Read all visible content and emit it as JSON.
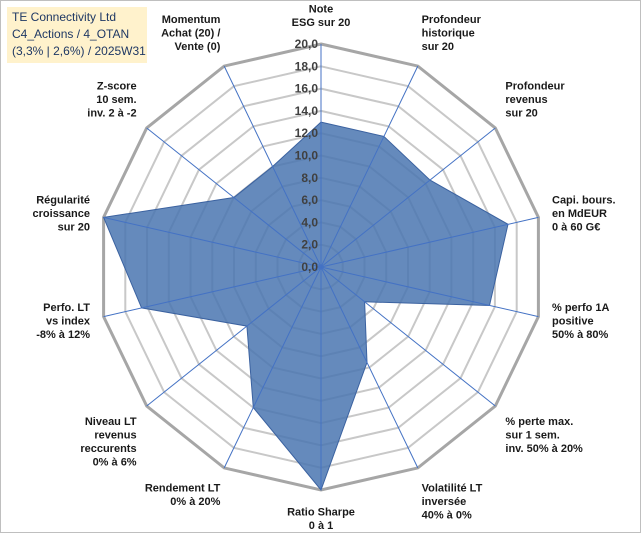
{
  "title": {
    "lines": [
      "TE Connectivity Ltd",
      "C4_Actions / 4_OTAN",
      "(3,3% | 2,6%) / 2025W31"
    ]
  },
  "colors": {
    "fill": "#4a75b0",
    "grid": "#c8c8c8",
    "outer_ring": "#a6a6a6",
    "spoke": "#4472c4",
    "title_bg": "#fff2cc"
  },
  "chart_data": {
    "type": "radar",
    "rlim": [
      0,
      20
    ],
    "ticks": [
      "0,0",
      "2,0",
      "4,0",
      "6,0",
      "8,0",
      "10,0",
      "12,0",
      "14,0",
      "16,0",
      "18,0",
      "20,0"
    ],
    "grid": true,
    "axes": [
      {
        "label": [
          "Note",
          "ESG sur 20"
        ],
        "value": 13.0
      },
      {
        "label": [
          "Profondeur",
          "historique",
          "sur 20"
        ],
        "value": 13.0
      },
      {
        "label": [
          "Profondeur",
          "revenus",
          "sur 20"
        ],
        "value": 12.5
      },
      {
        "label": [
          "Capi. bours.",
          "en MdEUR",
          "0 à 60 G€"
        ],
        "value": 17.2
      },
      {
        "label": [
          "% perfo 1A",
          "positive",
          "50% à 80%"
        ],
        "value": 15.5
      },
      {
        "label": [
          "% perte max.",
          "sur 1 sem.",
          "inv. 50% à 20%"
        ],
        "value": 5.0
      },
      {
        "label": [
          "Volatilité LT",
          "inversée",
          "40% à 0%"
        ],
        "value": 9.5
      },
      {
        "label": [
          "Ratio Sharpe",
          "0 à 1"
        ],
        "value": 20.0
      },
      {
        "label": [
          "Rendement LT",
          "0% à 20%"
        ],
        "value": 14.0
      },
      {
        "label": [
          "Niveau LT",
          "revenus",
          "reccurents",
          "0% à 6%"
        ],
        "value": 8.5
      },
      {
        "label": [
          "Perfo. LT",
          "vs index",
          "-8% à 12%"
        ],
        "value": 16.5
      },
      {
        "label": [
          "Régularité",
          "croissance",
          "sur 20"
        ],
        "value": 20.0
      },
      {
        "label": [
          "Z-score",
          "10 sem.",
          "inv. 2 à -2"
        ],
        "value": 10.0
      },
      {
        "label": [
          "Momentum",
          "Achat (20) /",
          "Vente (0)"
        ],
        "value": 10.0
      }
    ]
  }
}
